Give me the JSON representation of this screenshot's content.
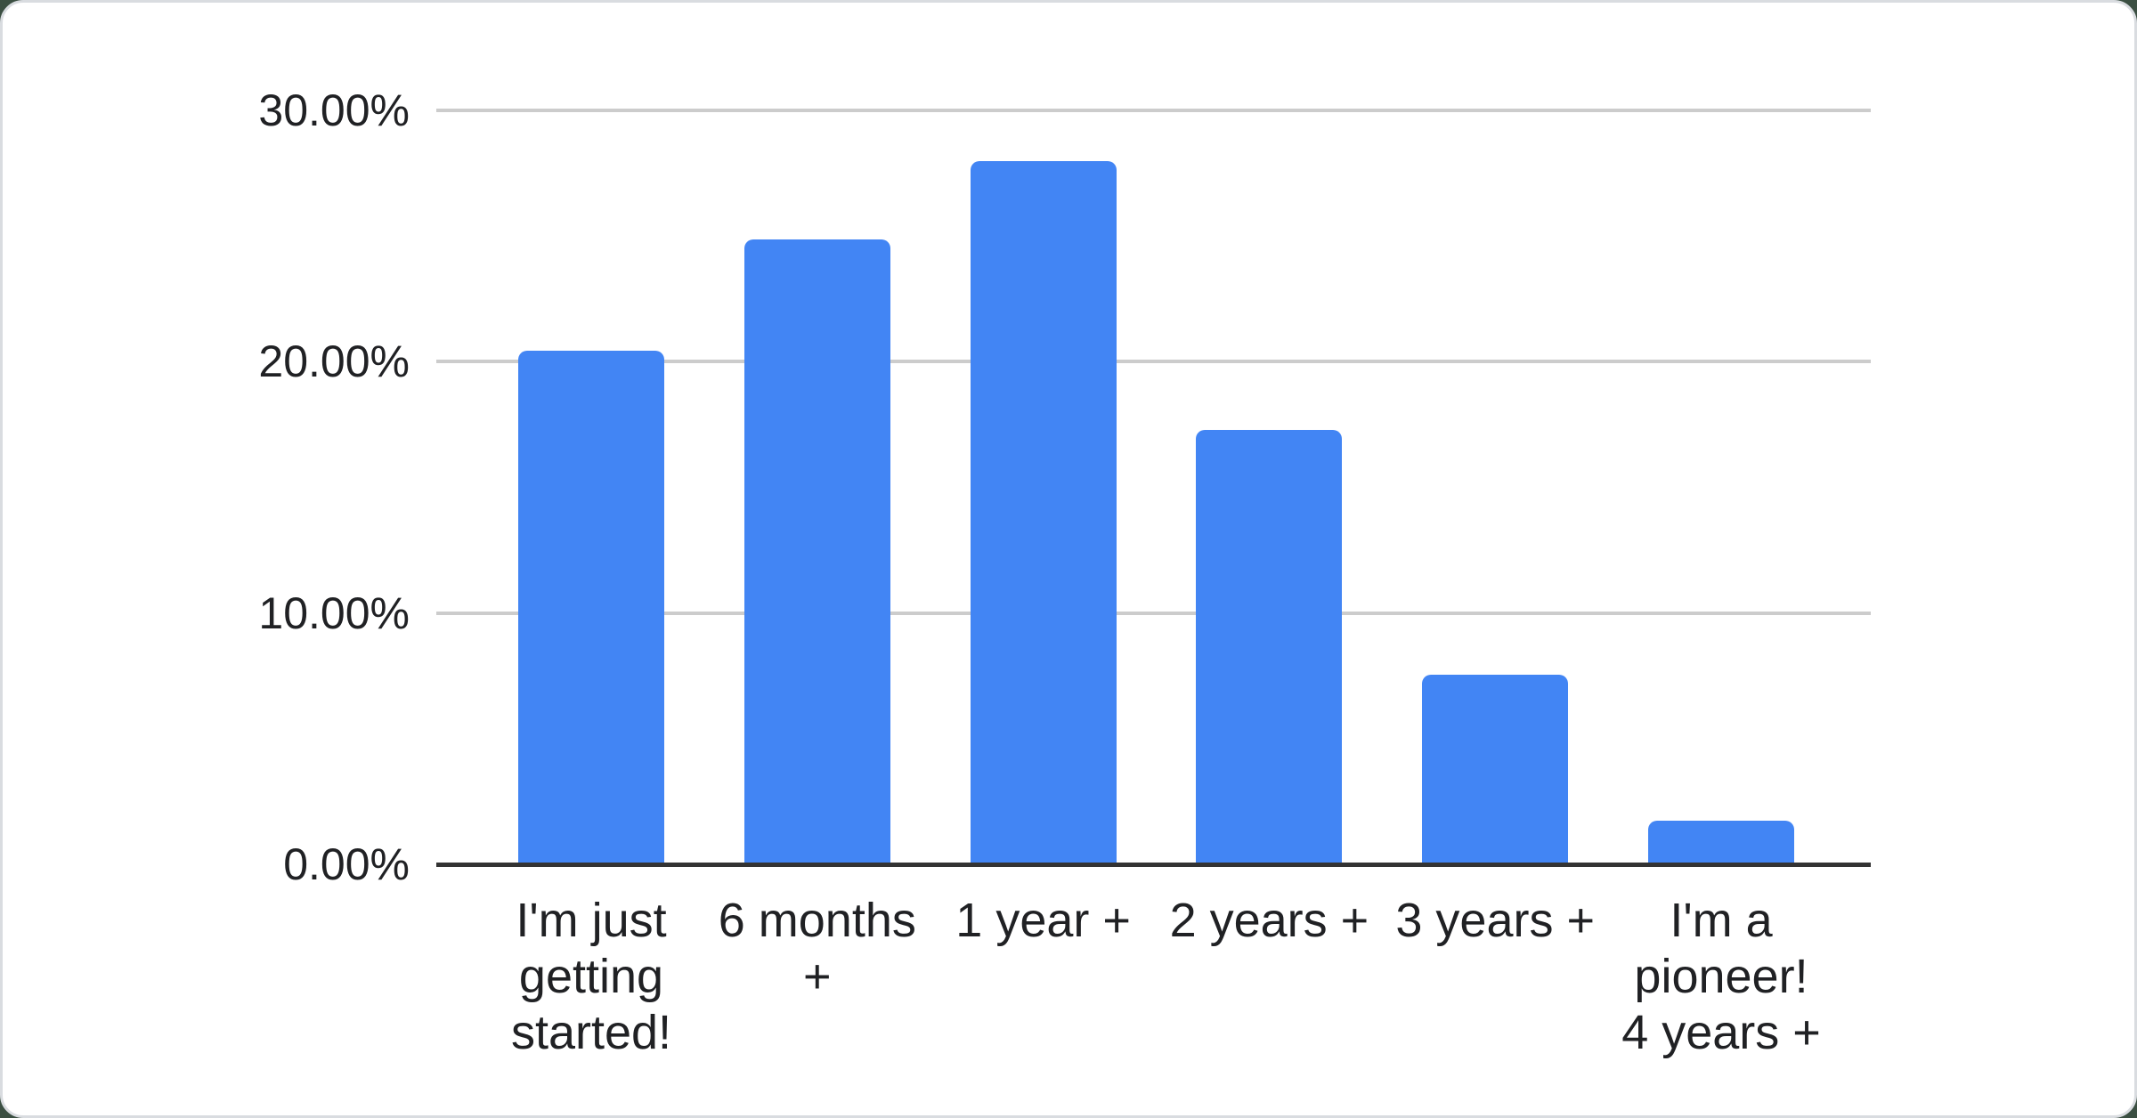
{
  "chart_data": {
    "type": "bar",
    "title": "",
    "xlabel": "",
    "ylabel": "",
    "legend": "none",
    "grid": true,
    "ylim": [
      0,
      30
    ],
    "categories": [
      "I'm just getting started!",
      "6 months +",
      "1 year +",
      "2 years +",
      "3 years +",
      "I'm a pioneer! 4 years +"
    ],
    "values": [
      20.45,
      24.86,
      27.99,
      17.3,
      7.54,
      1.72
    ],
    "x_label_lines": [
      [
        "I'm just",
        "getting",
        "started!"
      ],
      [
        "6 months",
        "+"
      ],
      [
        "1 year +"
      ],
      [
        "2 years +"
      ],
      [
        "3 years +"
      ],
      [
        "I'm a",
        "pioneer!",
        "4 years +"
      ]
    ],
    "y_ticks": [
      {
        "value": 0,
        "label": "0.00%"
      },
      {
        "value": 10,
        "label": "10.00%"
      },
      {
        "value": 20,
        "label": "20.00%"
      },
      {
        "value": 30,
        "label": "30.00%"
      }
    ]
  },
  "colors": {
    "bar": "#4285f4",
    "gridline": "#cccccc",
    "axis_line": "#333333",
    "label_text": "#202124",
    "card_background": "#ffffff",
    "card_border": "#d9dce0",
    "page_backdrop": "#3b4f42"
  }
}
